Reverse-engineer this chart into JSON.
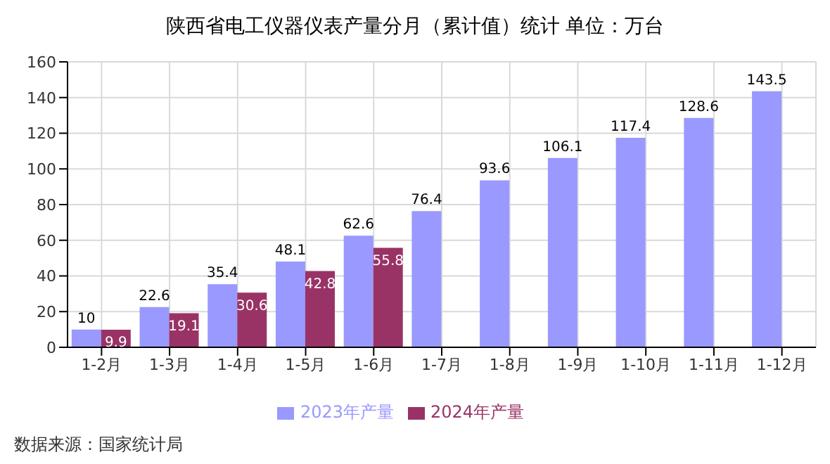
{
  "chart_data": {
    "type": "bar",
    "title": "陕西省电工仪器仪表产量分月（累计值）统计 单位：万台",
    "categories": [
      "1-2月",
      "1-3月",
      "1-4月",
      "1-5月",
      "1-6月",
      "1-7月",
      "1-8月",
      "1-9月",
      "1-10月",
      "1-11月",
      "1-12月"
    ],
    "series": [
      {
        "name": "2023年产量",
        "color": "#9999ff",
        "values": [
          10,
          22.6,
          35.4,
          48.1,
          62.6,
          76.4,
          93.6,
          106.1,
          117.4,
          128.6,
          143.5
        ]
      },
      {
        "name": "2024年产量",
        "color": "#993366",
        "values": [
          9.9,
          19.1,
          30.6,
          42.8,
          55.8,
          null,
          null,
          null,
          null,
          null,
          null
        ]
      }
    ],
    "ylim": [
      0,
      160
    ],
    "yticks": [
      0,
      20,
      40,
      60,
      80,
      100,
      120,
      140,
      160
    ],
    "grid": true,
    "legend": "bottom",
    "data_labels": true,
    "annotations": [
      "数据来源：国家统计局"
    ]
  }
}
